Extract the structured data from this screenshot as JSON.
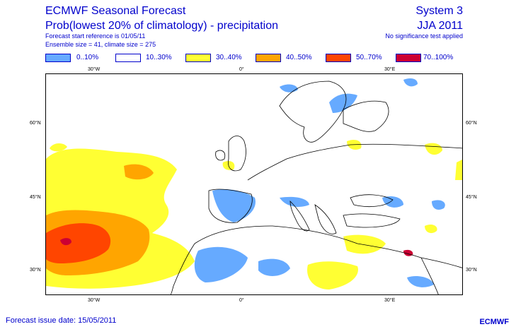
{
  "header": {
    "title": "ECMWF Seasonal Forecast",
    "subtitle": "Prob(lowest 20% of climatology) - precipitation",
    "start_ref": "Forecast start reference is 01/05/11",
    "ensemble": "Ensemble size = 41, climate size = 275",
    "system": "System 3",
    "season": "JJA 2011",
    "significance": "No significance test applied"
  },
  "legend": [
    {
      "label": "0..10%",
      "color": "#66aaff"
    },
    {
      "label": "10..30%",
      "color": "#ffffff"
    },
    {
      "label": "30..40%",
      "color": "#ffff33"
    },
    {
      "label": "40..50%",
      "color": "#ffa500"
    },
    {
      "label": "50..70%",
      "color": "#ff4500"
    },
    {
      "label": "70..100%",
      "color": "#cc0033"
    }
  ],
  "axes": {
    "lon_top": [
      "30°W",
      "0°",
      "30°E"
    ],
    "lon_bottom": [
      "30°W",
      "0°",
      "30°E"
    ],
    "lat_left": [
      "60°N",
      "45°N",
      "30°N"
    ],
    "lat_right": [
      "60°N",
      "45°N",
      "30°N"
    ]
  },
  "footer": {
    "issue_date": "Forecast issue date: 15/05/2011",
    "logo": "ECMWF"
  }
}
